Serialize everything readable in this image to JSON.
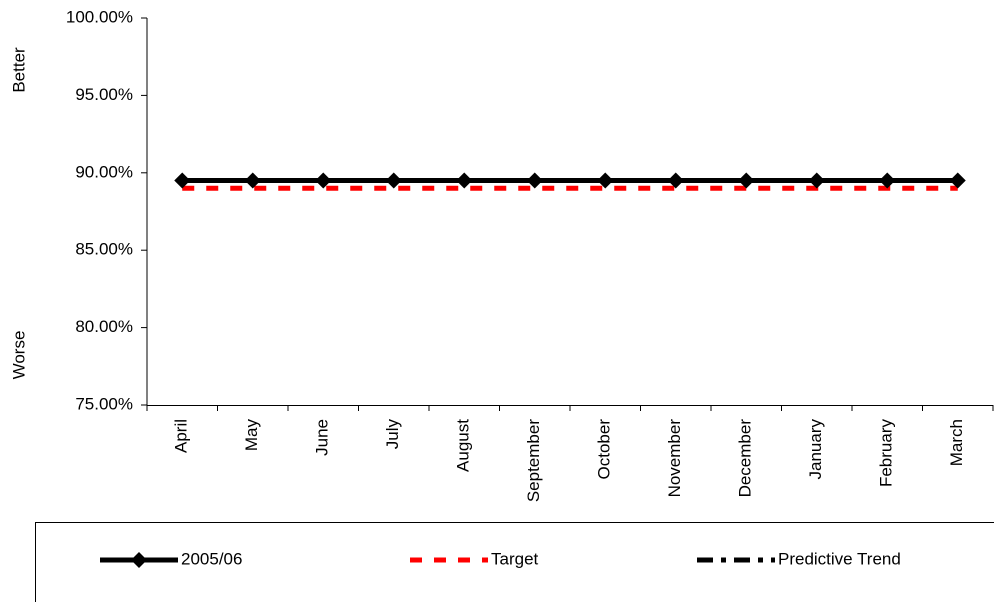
{
  "chart_data": {
    "type": "line",
    "annotations": [
      "Better",
      "Worse"
    ],
    "categories": [
      "April",
      "May",
      "June",
      "July",
      "August",
      "September",
      "October",
      "November",
      "December",
      "January",
      "February",
      "March"
    ],
    "series": [
      {
        "name": "2005/06",
        "color": "#000000",
        "line_style": "solid",
        "marker": "diamond",
        "values": [
          89.5,
          89.5,
          89.5,
          89.5,
          89.5,
          89.5,
          89.5,
          89.5,
          89.5,
          89.5,
          89.5,
          89.5
        ]
      },
      {
        "name": "Target",
        "color": "#ff0000",
        "line_style": "dashed",
        "values": [
          89.0,
          89.0,
          89.0,
          89.0,
          89.0,
          89.0,
          89.0,
          89.0,
          89.0,
          89.0,
          89.0,
          89.0
        ]
      },
      {
        "name": "Predictive Trend",
        "color": "#000000",
        "line_style": "dash-dot",
        "values": [
          89.5,
          89.5,
          89.5,
          89.5,
          89.5,
          89.5,
          89.5,
          89.5,
          89.5,
          89.5,
          89.5,
          89.5
        ]
      }
    ],
    "ylim": [
      75,
      100
    ],
    "yticks": [
      {
        "value": 75,
        "label": "75.00%"
      },
      {
        "value": 80,
        "label": "80.00%"
      },
      {
        "value": 85,
        "label": "85.00%"
      },
      {
        "value": 90,
        "label": "90.00%"
      },
      {
        "value": 95,
        "label": "95.00%"
      },
      {
        "value": 100,
        "label": "100.00%"
      }
    ],
    "legend": "bottom"
  }
}
